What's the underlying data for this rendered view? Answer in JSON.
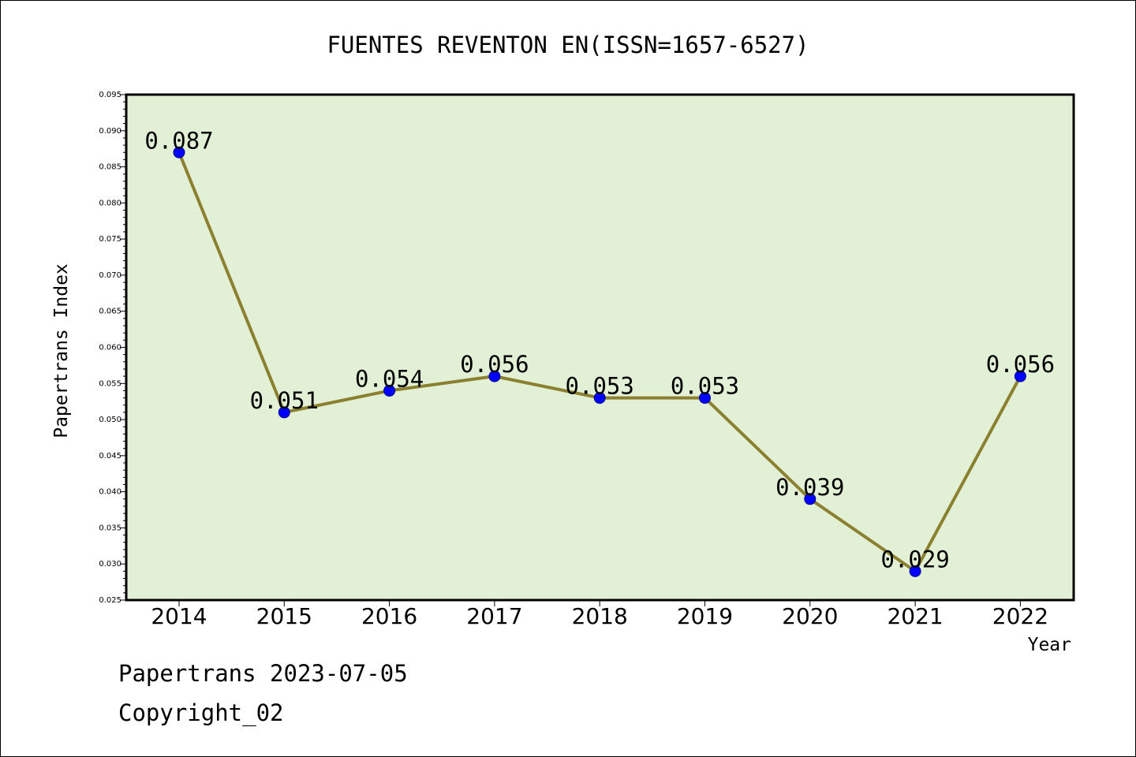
{
  "chart_data": {
    "type": "line",
    "title": "FUENTES REVENTON EN(ISSN=1657-6527)",
    "xlabel": "Year",
    "ylabel": "Papertrans Index",
    "categories": [
      "2014",
      "2015",
      "2016",
      "2017",
      "2018",
      "2019",
      "2020",
      "2021",
      "2022"
    ],
    "series": [
      {
        "values": [
          0.087,
          0.051,
          0.054,
          0.056,
          0.053,
          0.053,
          0.039,
          0.029,
          0.056
        ],
        "labels": [
          "0.087",
          "0.051",
          "0.054",
          "0.056",
          "0.053",
          "0.053",
          "0.039",
          "0.029",
          "0.056"
        ]
      }
    ],
    "ylim": [
      0.025,
      0.095
    ],
    "yticks": [
      "0.025",
      "0.030",
      "0.035",
      "0.040",
      "0.045",
      "0.050",
      "0.055",
      "0.060",
      "0.065",
      "0.070",
      "0.075",
      "0.080",
      "0.085",
      "0.090",
      "0.095"
    ],
    "grid": false,
    "colors": {
      "plot_bg": "#e2f0d6",
      "line": "#8b8030",
      "marker": "#0000ff"
    }
  },
  "footer": {
    "line1": "Papertrans 2023-07-05",
    "line2": "Copyright_02"
  }
}
